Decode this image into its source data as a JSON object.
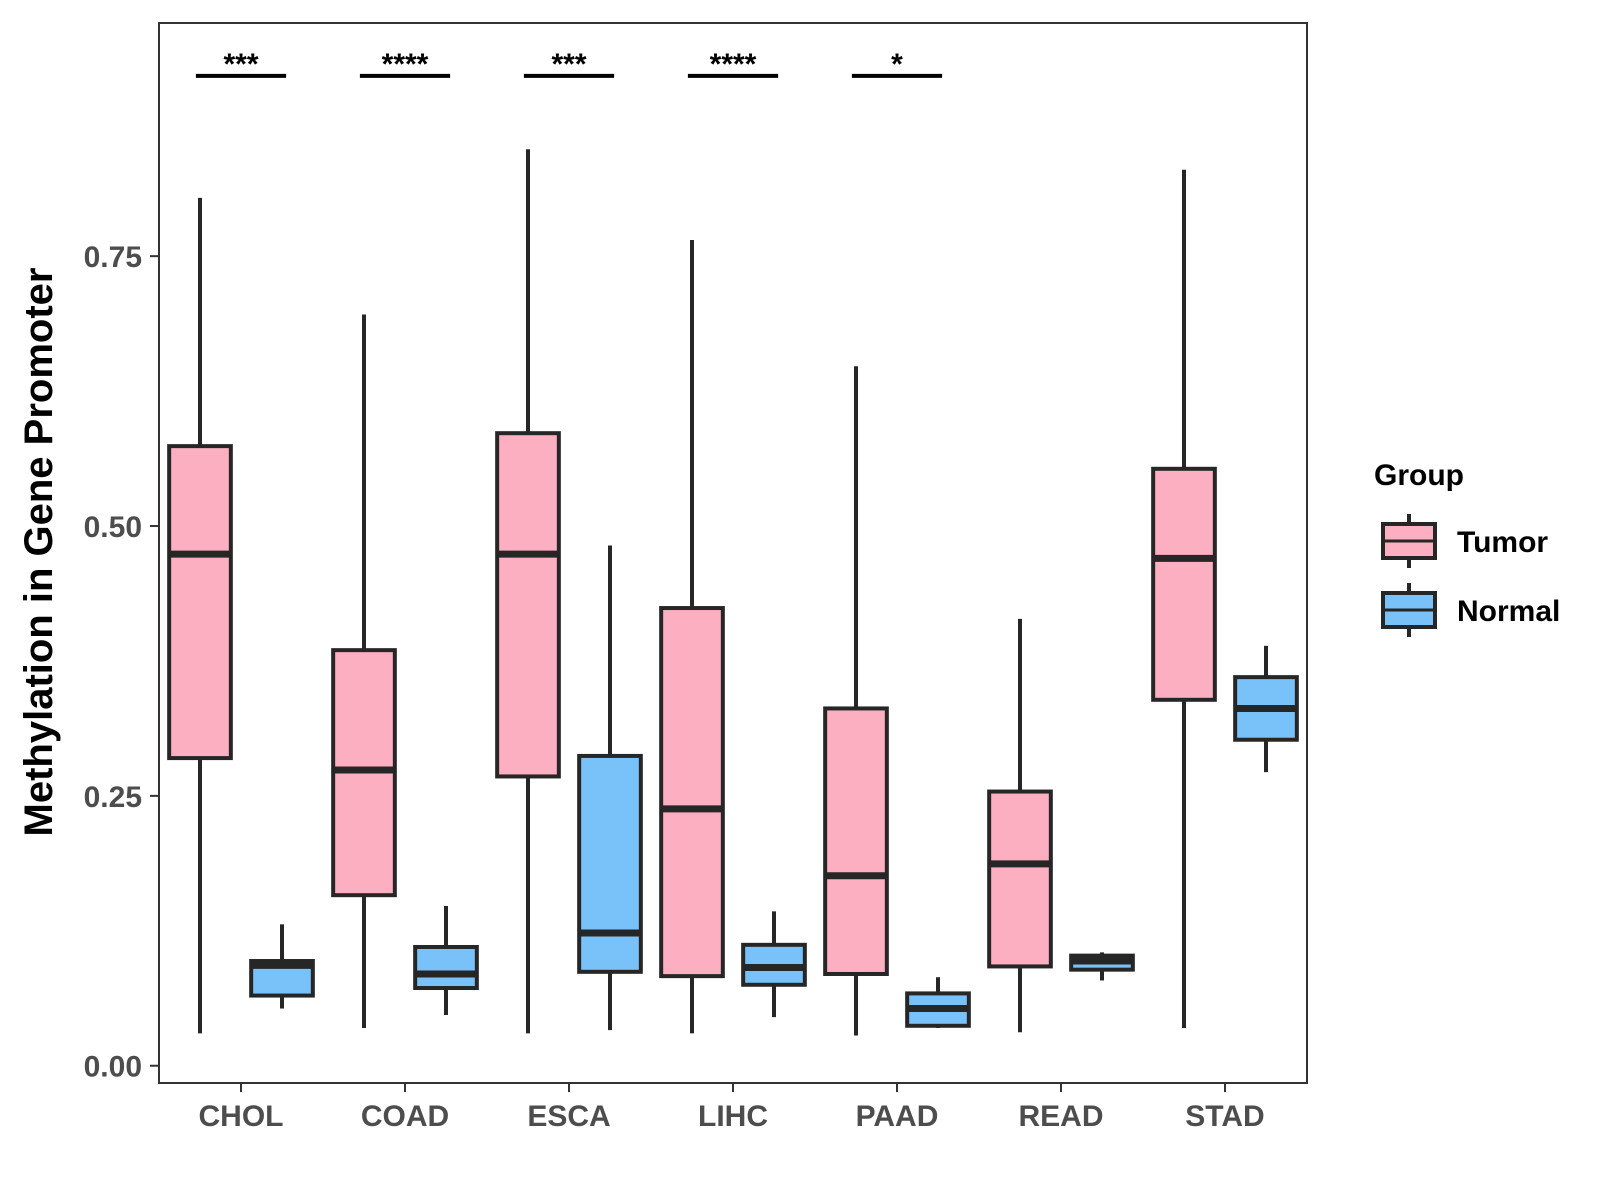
{
  "chart_data": {
    "type": "boxplot",
    "ylabel": "Methylation in Gene Promoter",
    "xlabel": "",
    "ylim": [
      -0.016,
      0.966
    ],
    "y_ticks": [
      0.0,
      0.25,
      0.5,
      0.75
    ],
    "y_tick_labels": [
      "0.00",
      "0.25",
      "0.50",
      "0.75"
    ],
    "grid": false,
    "legend": {
      "title": "Group",
      "position": "right"
    },
    "categories": [
      "CHOL",
      "COAD",
      "ESCA",
      "LIHC",
      "PAAD",
      "READ",
      "STAD"
    ],
    "series": [
      {
        "name": "Tumor",
        "color": "#FCAFC0",
        "boxes": [
          {
            "min": 0.03,
            "q1": 0.285,
            "median": 0.474,
            "q3": 0.574,
            "max": 0.804
          },
          {
            "min": 0.035,
            "q1": 0.158,
            "median": 0.274,
            "q3": 0.385,
            "max": 0.696
          },
          {
            "min": 0.03,
            "q1": 0.268,
            "median": 0.474,
            "q3": 0.586,
            "max": 0.849
          },
          {
            "min": 0.03,
            "q1": 0.083,
            "median": 0.238,
            "q3": 0.424,
            "max": 0.765
          },
          {
            "min": 0.028,
            "q1": 0.085,
            "median": 0.176,
            "q3": 0.331,
            "max": 0.648
          },
          {
            "min": 0.031,
            "q1": 0.092,
            "median": 0.187,
            "q3": 0.254,
            "max": 0.414
          },
          {
            "min": 0.035,
            "q1": 0.339,
            "median": 0.47,
            "q3": 0.553,
            "max": 0.83
          }
        ]
      },
      {
        "name": "Normal",
        "color": "#78C1F9",
        "boxes": [
          {
            "min": 0.053,
            "q1": 0.065,
            "median": 0.093,
            "q3": 0.097,
            "max": 0.131
          },
          {
            "min": 0.047,
            "q1": 0.072,
            "median": 0.085,
            "q3": 0.11,
            "max": 0.148
          },
          {
            "min": 0.033,
            "q1": 0.087,
            "median": 0.123,
            "q3": 0.287,
            "max": 0.482
          },
          {
            "min": 0.045,
            "q1": 0.075,
            "median": 0.091,
            "q3": 0.112,
            "max": 0.143
          },
          {
            "min": 0.035,
            "q1": 0.037,
            "median": 0.053,
            "q3": 0.067,
            "max": 0.082
          },
          {
            "min": 0.079,
            "q1": 0.089,
            "median": 0.097,
            "q3": 0.102,
            "max": 0.105
          },
          {
            "min": 0.272,
            "q1": 0.302,
            "median": 0.331,
            "q3": 0.36,
            "max": 0.389
          }
        ]
      }
    ],
    "significance": [
      {
        "category": "CHOL",
        "label": "***",
        "y": 0.917
      },
      {
        "category": "COAD",
        "label": "****",
        "y": 0.917
      },
      {
        "category": "ESCA",
        "label": "***",
        "y": 0.917
      },
      {
        "category": "LIHC",
        "label": "****",
        "y": 0.917
      },
      {
        "category": "PAAD",
        "label": "*",
        "y": 0.917
      }
    ]
  }
}
